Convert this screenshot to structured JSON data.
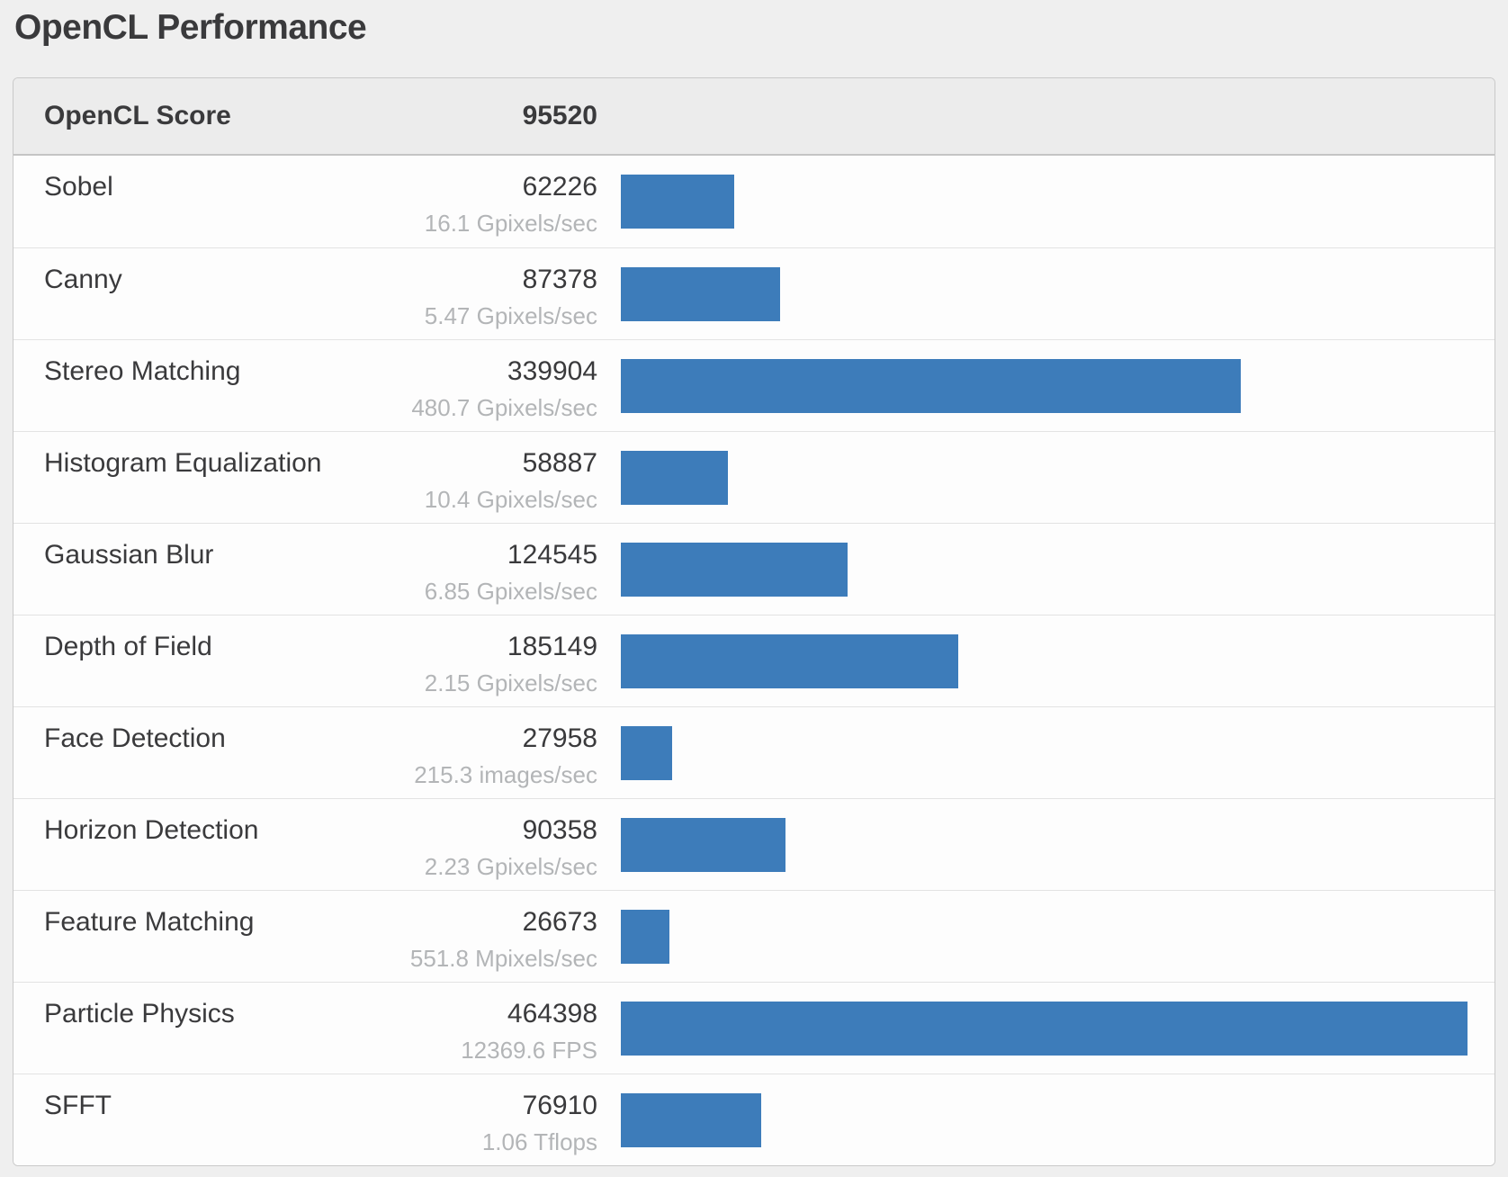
{
  "page": {
    "title": "OpenCL Performance"
  },
  "colors": {
    "page_bg": "#efefef",
    "row_bg": "#fdfdfd",
    "header_bg": "#ececec",
    "border": "#c9c9c9",
    "divider": "#e3e3e3",
    "text_dark": "#3a3a3c",
    "text_muted": "#b3b5b7",
    "bar": "#3d7cba"
  },
  "score_table": {
    "header": {
      "label": "OpenCL Score",
      "value": "95520"
    },
    "rows": [
      {
        "label": "Sobel",
        "score": 62226,
        "rate": "16.1 Gpixels/sec"
      },
      {
        "label": "Canny",
        "score": 87378,
        "rate": "5.47 Gpixels/sec"
      },
      {
        "label": "Stereo Matching",
        "score": 339904,
        "rate": "480.7 Gpixels/sec"
      },
      {
        "label": "Histogram Equalization",
        "score": 58887,
        "rate": "10.4 Gpixels/sec"
      },
      {
        "label": "Gaussian Blur",
        "score": 124545,
        "rate": "6.85 Gpixels/sec"
      },
      {
        "label": "Depth of Field",
        "score": 185149,
        "rate": "2.15 Gpixels/sec"
      },
      {
        "label": "Face Detection",
        "score": 27958,
        "rate": "215.3 images/sec"
      },
      {
        "label": "Horizon Detection",
        "score": 90358,
        "rate": "2.23 Gpixels/sec"
      },
      {
        "label": "Feature Matching",
        "score": 26673,
        "rate": "551.8 Mpixels/sec"
      },
      {
        "label": "Particle Physics",
        "score": 464398,
        "rate": "12369.6 FPS"
      },
      {
        "label": "SFFT",
        "score": 76910,
        "rate": "1.06 Tflops"
      }
    ]
  },
  "chart_data": {
    "type": "bar",
    "orientation": "horizontal",
    "title": "OpenCL Performance",
    "subtitle_row": {
      "label": "OpenCL Score",
      "value": 95520
    },
    "categories": [
      "Sobel",
      "Canny",
      "Stereo Matching",
      "Histogram Equalization",
      "Gaussian Blur",
      "Depth of Field",
      "Face Detection",
      "Horizon Detection",
      "Feature Matching",
      "Particle Physics",
      "SFFT"
    ],
    "values": [
      62226,
      87378,
      339904,
      58887,
      124545,
      185149,
      27958,
      90358,
      26673,
      464398,
      76910
    ],
    "value_labels": [
      "16.1 Gpixels/sec",
      "5.47 Gpixels/sec",
      "480.7 Gpixels/sec",
      "10.4 Gpixels/sec",
      "6.85 Gpixels/sec",
      "2.15 Gpixels/sec",
      "215.3 images/sec",
      "2.23 Gpixels/sec",
      "551.8 Mpixels/sec",
      "12369.6 FPS",
      "1.06 Tflops"
    ],
    "xlim": [
      0,
      464398
    ],
    "grid": false,
    "legend": false,
    "bar_color": "#3d7cba"
  }
}
